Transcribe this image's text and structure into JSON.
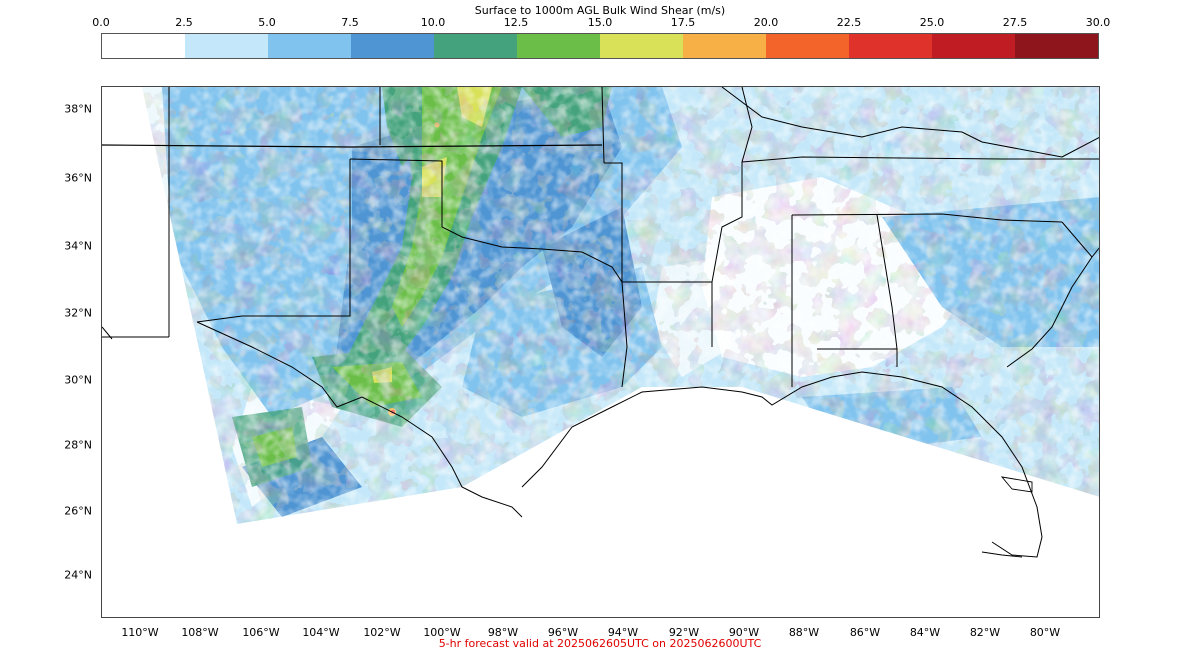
{
  "colorbar": {
    "title": "Surface to 1000m AGL Bulk Wind Shear (m/s)",
    "ticks": [
      "0.0",
      "2.5",
      "5.0",
      "7.5",
      "10.0",
      "12.5",
      "15.0",
      "17.5",
      "20.0",
      "22.5",
      "25.0",
      "27.5",
      "30.0"
    ],
    "colors": [
      "#ffffff",
      "#c4e8f9",
      "#80c3ee",
      "#4f95d3",
      "#44a37c",
      "#6bbf49",
      "#d8e157",
      "#f7b045",
      "#f26429",
      "#de322a",
      "#bf1c24",
      "#8e151c"
    ]
  },
  "map": {
    "lat_labels": [
      "38°N",
      "36°N",
      "34°N",
      "32°N",
      "30°N",
      "28°N",
      "26°N",
      "24°N"
    ],
    "lon_labels": [
      "110°W",
      "108°W",
      "106°W",
      "104°W",
      "102°W",
      "100°W",
      "98°W",
      "96°W",
      "94°W",
      "92°W",
      "90°W",
      "88°W",
      "86°W",
      "84°W",
      "82°W",
      "80°W"
    ]
  },
  "caption": "5-hr forecast valid at 2025062605UTC on 2025062600UTC"
}
